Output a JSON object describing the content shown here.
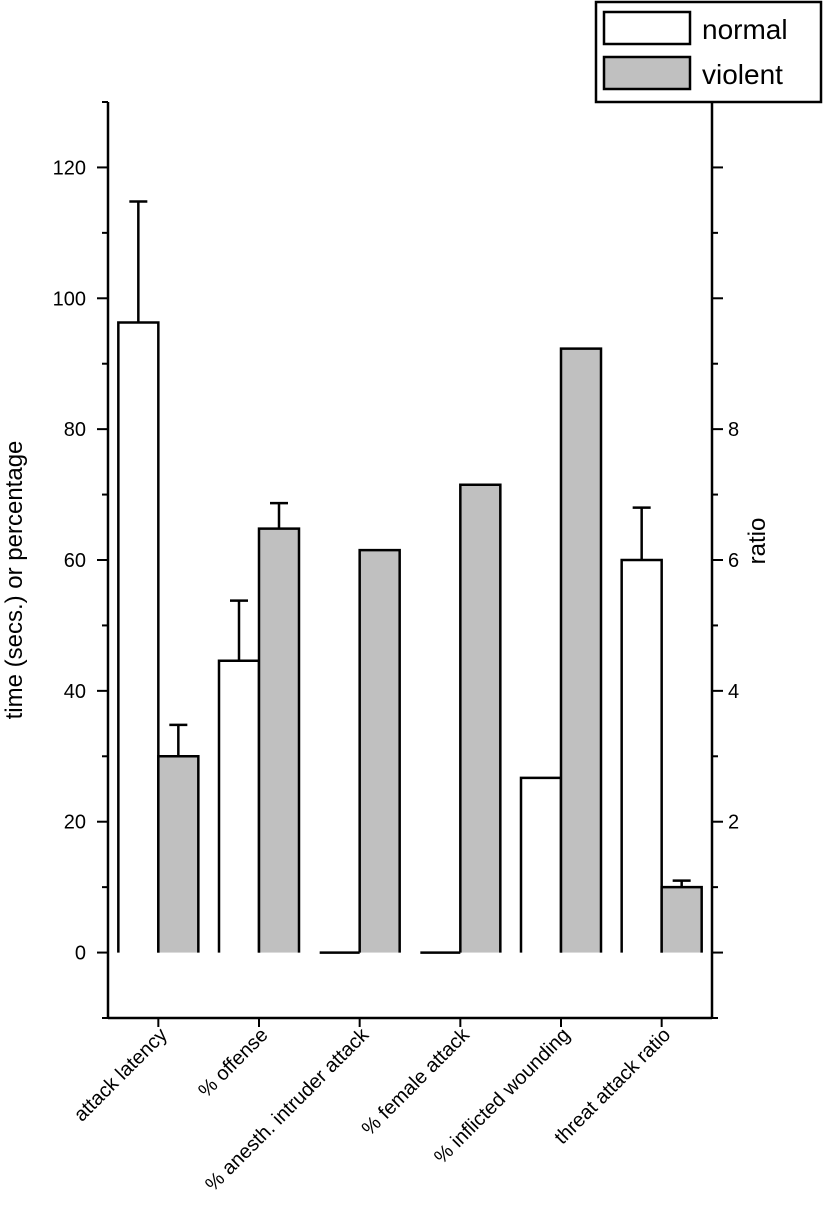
{
  "chart_data": {
    "type": "bar",
    "categories": [
      "attack latency",
      "% offense",
      "% anesth. intruder attack",
      "% female attack",
      "% inflicted wounding",
      "threat attack ratio"
    ],
    "series": [
      {
        "name": "normal",
        "values": [
          96.3,
          44.6,
          0,
          0,
          26.7,
          60
        ],
        "error_plus": [
          18.5,
          9.2,
          null,
          null,
          null,
          8
        ],
        "color": "#ffffff"
      },
      {
        "name": "violent",
        "values": [
          30,
          64.8,
          61.5,
          71.5,
          92.3,
          10
        ],
        "error_plus": [
          4.8,
          3.9,
          null,
          null,
          null,
          1
        ],
        "color": "#c0c0c0"
      }
    ],
    "ylabel": "time (secs.) or percentage",
    "ylabel_right": "ratio",
    "ylim": [
      -10,
      130
    ],
    "y_ticks": [
      0,
      20,
      40,
      60,
      80,
      100,
      120
    ],
    "y_ticks_right": [
      2,
      4,
      6,
      8
    ],
    "y_right_scale_per_left": 0.1,
    "legend_position": "top-right",
    "grid": false
  }
}
